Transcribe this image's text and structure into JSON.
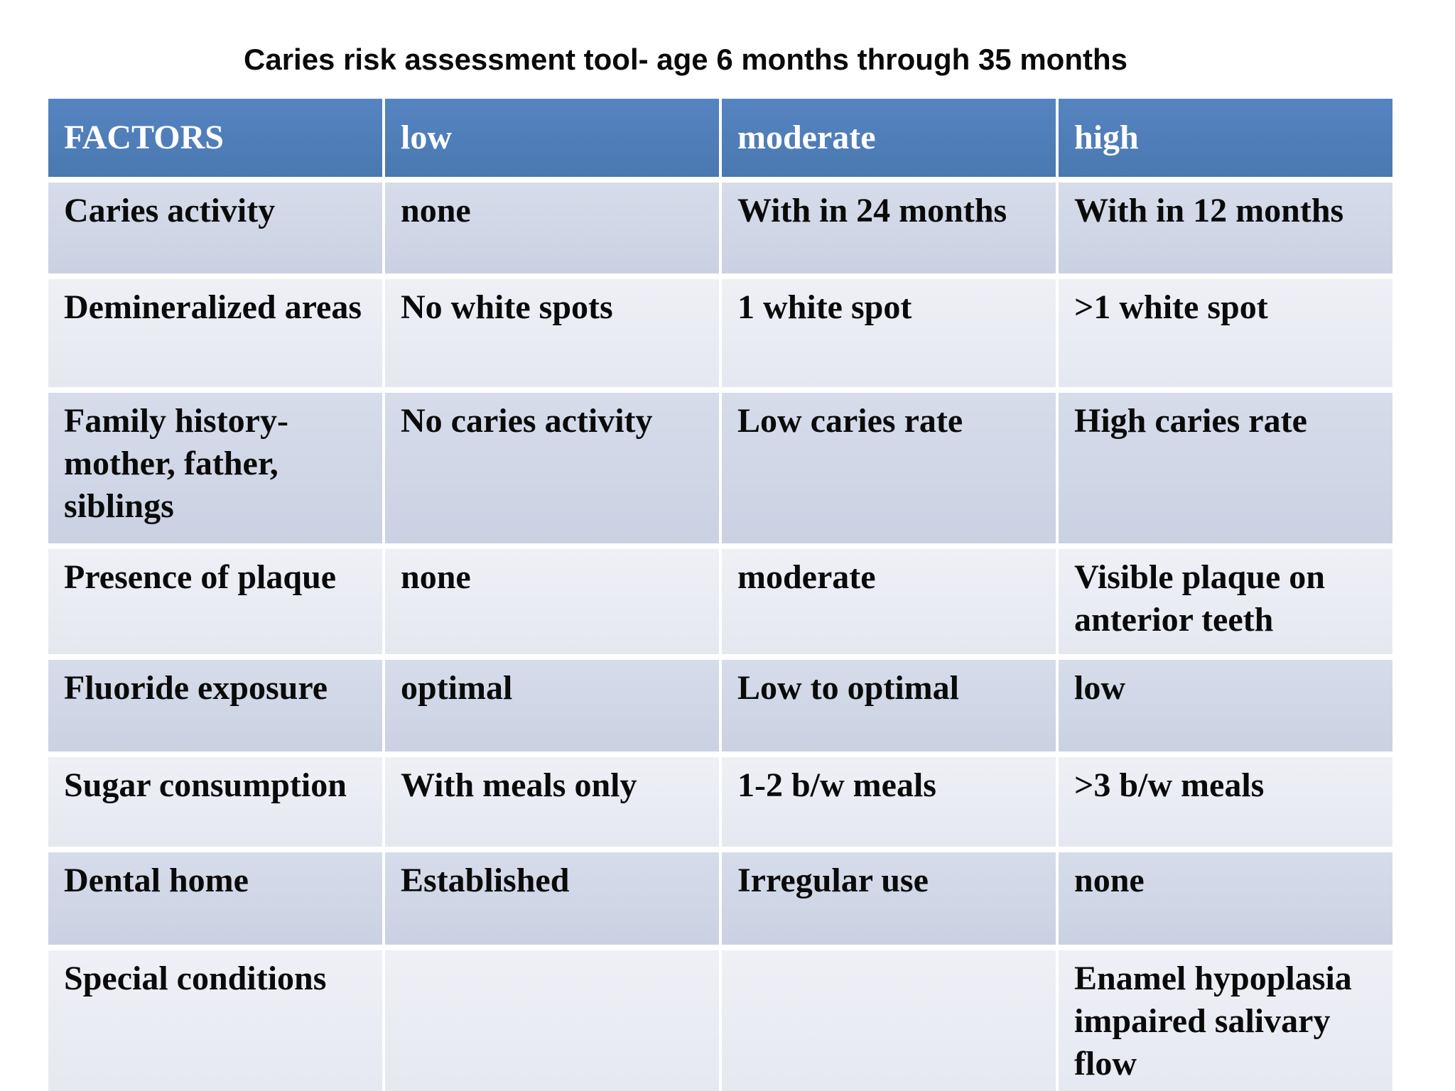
{
  "title": "Caries risk assessment tool- age 6 months through 35 months",
  "colors": {
    "header_blue": "#4f81bd",
    "band_dark": "#ccd3e4",
    "band_light": "#e9ebf2",
    "header_text": "#ffffff",
    "body_text": "#0a0a0a"
  },
  "table": {
    "columns": [
      "FACTORS",
      "low",
      "moderate",
      "high"
    ],
    "rows": [
      {
        "factor": "Caries activity",
        "low": "none",
        "moderate": "With in 24 months",
        "high": "With in 12 months"
      },
      {
        "factor": "Demineralized areas",
        "low": "No white spots",
        "moderate": "1 white spot",
        "high": ">1 white spot"
      },
      {
        "factor": "Family history- mother, father, siblings",
        "low": "No caries activity",
        "moderate": "Low caries rate",
        "high": "High caries rate"
      },
      {
        "factor": "Presence of plaque",
        "low": "none",
        "moderate": "moderate",
        "high": "Visible plaque on anterior teeth"
      },
      {
        "factor": "Fluoride exposure",
        "low": "optimal",
        "moderate": "Low to optimal",
        "high": "low"
      },
      {
        "factor": "Sugar consumption",
        "low": "With meals only",
        "moderate": "1-2 b/w meals",
        "high": ">3 b/w meals"
      },
      {
        "factor": "Dental home",
        "low": "Established",
        "moderate": "Irregular use",
        "high": "none"
      },
      {
        "factor": "Special conditions",
        "low": "",
        "moderate": "",
        "high": "Enamel hypoplasia impaired salivary flow"
      }
    ]
  }
}
